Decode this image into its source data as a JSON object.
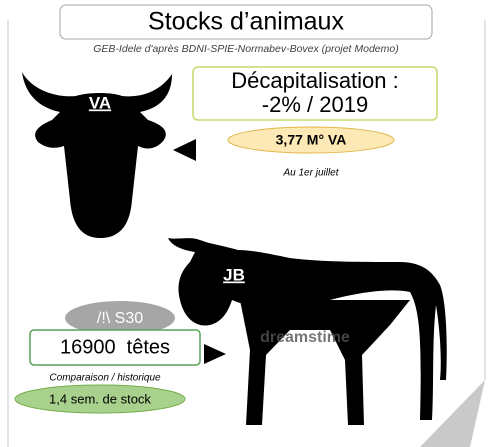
{
  "header": {
    "title": "Stocks d’animaux",
    "source": "GEB-Idele d'après BDNI-SPIE-Normabev-Bovex (projet Modemo)"
  },
  "va": {
    "label": "VA",
    "headline": "Décapitalisation :",
    "change": "-2% / 2019",
    "stock": "3,77 M° VA",
    "date": "Au 1er juillet"
  },
  "jb": {
    "label": "JB",
    "alert": "/!\\ S30",
    "count": "16900  têtes",
    "comparison": "Comparaison / historique",
    "weeks": "1,4 sem. de stock",
    "watermark": "dreamstime"
  }
}
